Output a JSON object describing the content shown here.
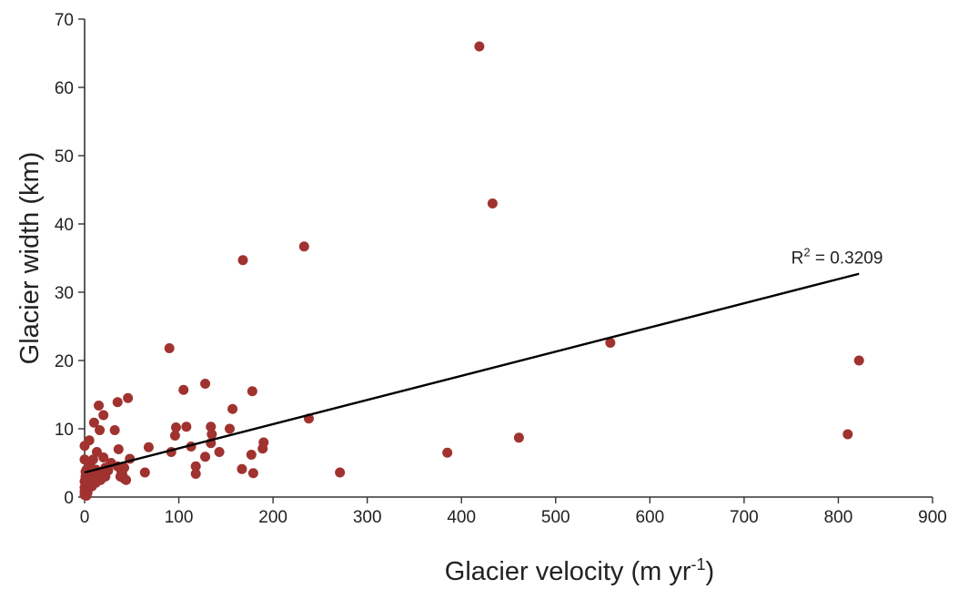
{
  "chart_data": {
    "type": "scatter",
    "title": "",
    "xlabel": "Glacier velocity (m yr",
    "xlabel_sup": "-1",
    "xlabel_end": ")",
    "ylabel": "Glacier width (km)",
    "xlim": [
      0,
      900
    ],
    "ylim": [
      0,
      70
    ],
    "x_ticks": [
      0,
      100,
      200,
      300,
      400,
      500,
      600,
      700,
      800,
      900
    ],
    "y_ticks": [
      0,
      10,
      20,
      30,
      40,
      50,
      60,
      70
    ],
    "grid": false,
    "colors": {
      "points": "#a0322f",
      "trendline": "#000000",
      "axis": "#333333"
    },
    "trendline": {
      "x": [
        0,
        822
      ],
      "y": [
        3.6,
        32.7
      ]
    },
    "annotation": {
      "text_base": "R",
      "text_sup": "2",
      "text_rest": " = 0.3209",
      "x": 750,
      "y": 34.2
    },
    "points": [
      [
        419,
        66
      ],
      [
        433,
        43
      ],
      [
        233,
        36.7
      ],
      [
        168,
        34.7
      ],
      [
        558,
        22.6
      ],
      [
        822,
        20
      ],
      [
        90,
        21.8
      ],
      [
        128,
        16.6
      ],
      [
        105,
        15.7
      ],
      [
        178,
        15.5
      ],
      [
        46,
        14.5
      ],
      [
        35,
        13.9
      ],
      [
        15,
        13.4
      ],
      [
        157,
        12.9
      ],
      [
        20,
        12
      ],
      [
        238,
        11.5
      ],
      [
        10,
        10.9
      ],
      [
        97,
        10.2
      ],
      [
        108,
        10.3
      ],
      [
        134,
        10.3
      ],
      [
        154,
        10
      ],
      [
        16,
        9.8
      ],
      [
        32,
        9.8
      ],
      [
        96,
        9
      ],
      [
        135,
        9.2
      ],
      [
        810,
        9.2
      ],
      [
        461,
        8.7
      ],
      [
        5,
        8.3
      ],
      [
        190,
        8
      ],
      [
        134,
        7.9
      ],
      [
        0,
        7.5
      ],
      [
        68,
        7.3
      ],
      [
        113,
        7.4
      ],
      [
        189,
        7.1
      ],
      [
        36,
        7
      ],
      [
        13,
        6.6
      ],
      [
        92,
        6.6
      ],
      [
        143,
        6.6
      ],
      [
        385,
        6.5
      ],
      [
        177,
        6.2
      ],
      [
        128,
        5.9
      ],
      [
        20,
        5.8
      ],
      [
        48,
        5.6
      ],
      [
        0,
        5.5
      ],
      [
        9,
        5.5
      ],
      [
        6,
        5
      ],
      [
        28,
        5
      ],
      [
        118,
        4.5
      ],
      [
        35,
        4.5
      ],
      [
        22,
        4.3
      ],
      [
        167,
        4.1
      ],
      [
        42,
        4.3
      ],
      [
        2,
        4
      ],
      [
        12,
        4
      ],
      [
        25,
        3.9
      ],
      [
        39,
        3.8
      ],
      [
        1,
        3.7
      ],
      [
        18,
        3.7
      ],
      [
        64,
        3.6
      ],
      [
        271,
        3.6
      ],
      [
        179,
        3.5
      ],
      [
        118,
        3.4
      ],
      [
        40,
        3.3
      ],
      [
        8,
        3.2
      ],
      [
        14,
        3.2
      ],
      [
        22,
        3
      ],
      [
        38,
        3
      ],
      [
        1,
        3
      ],
      [
        5,
        2.9
      ],
      [
        42,
        2.7
      ],
      [
        3,
        2.6
      ],
      [
        10,
        2.6
      ],
      [
        17,
        2.5
      ],
      [
        44,
        2.5
      ],
      [
        0,
        2.3
      ],
      [
        6,
        2.2
      ],
      [
        12,
        2.1
      ],
      [
        2,
        1.8
      ],
      [
        8,
        1.6
      ],
      [
        0,
        1.4
      ],
      [
        4,
        1.2
      ],
      [
        1,
        1
      ],
      [
        0,
        0.8
      ],
      [
        3,
        0.6
      ],
      [
        0,
        0.3
      ],
      [
        2,
        0.2
      ],
      [
        6,
        1.9
      ],
      [
        1,
        2.5
      ]
    ]
  }
}
